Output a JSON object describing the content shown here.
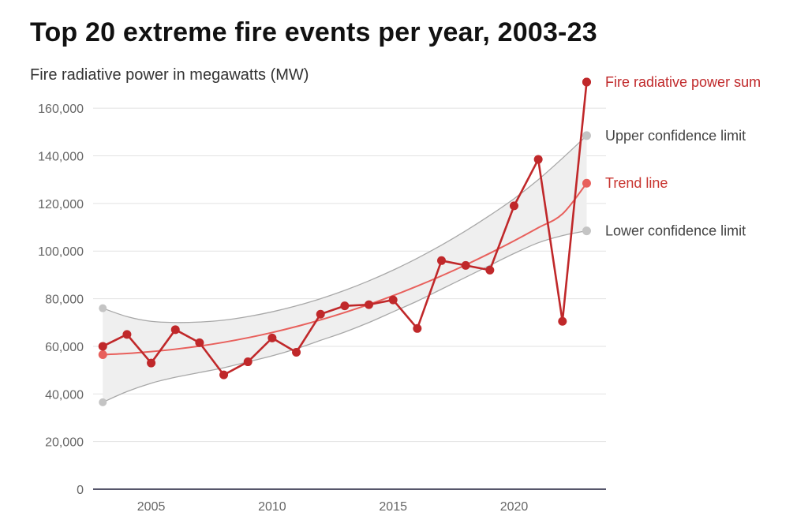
{
  "title": "Top 20 extreme fire events per year, 2003-23",
  "subtitle": "Fire radiative power in megawatts (MW)",
  "colors": {
    "sum": "#c0282a",
    "trend": "#e8605c",
    "confidence_line": "#a8a8a8",
    "confidence_marker": "#c4c4c4",
    "band": "#efefef",
    "grid": "#e2e2e2",
    "axis": "#1f1f3a",
    "sum_label": "#c0282a",
    "trend_label": "#c8342f",
    "confidence_label": "#444444"
  },
  "chart_data": {
    "type": "line",
    "title": "Top 20 extreme fire events per year, 2003-23",
    "ylabel": "Fire radiative power in megawatts (MW)",
    "xlabel": "",
    "xlim": [
      2002.6,
      2023.8
    ],
    "ylim": [
      0,
      170000
    ],
    "x_ticks": [
      2005,
      2010,
      2015,
      2020
    ],
    "y_ticks": [
      0,
      20000,
      40000,
      60000,
      80000,
      100000,
      120000,
      140000,
      160000
    ],
    "y_tick_labels": [
      "0",
      "20,000",
      "40,000",
      "60,000",
      "80,000",
      "100,000",
      "120,000",
      "140,000",
      "160,000"
    ],
    "x": [
      2003,
      2004,
      2005,
      2006,
      2007,
      2008,
      2009,
      2010,
      2011,
      2012,
      2013,
      2014,
      2015,
      2016,
      2017,
      2018,
      2019,
      2020,
      2021,
      2022,
      2023
    ],
    "series": [
      {
        "name": "Fire radiative power sum",
        "values": [
          60000,
          65000,
          53000,
          67000,
          61500,
          48000,
          53500,
          63500,
          57500,
          73500,
          77000,
          77500,
          79500,
          67500,
          96000,
          94000,
          92000,
          119000,
          138500,
          70500,
          171000
        ]
      },
      {
        "name": "Upper confidence limit",
        "values": [
          76000,
          72500,
          70500,
          70000,
          70200,
          71000,
          72500,
          74500,
          77000,
          80000,
          83500,
          87500,
          92000,
          97000,
          102500,
          108500,
          115000,
          122000,
          130000,
          139000,
          148500
        ]
      },
      {
        "name": "Trend line",
        "values": [
          56500,
          57000,
          57800,
          58800,
          60100,
          61700,
          63600,
          65800,
          68300,
          71100,
          74200,
          77600,
          81300,
          85300,
          89600,
          94200,
          99100,
          104300,
          109800,
          115600,
          128500
        ]
      },
      {
        "name": "Lower confidence limit",
        "values": [
          36500,
          41000,
          44500,
          47000,
          49000,
          51000,
          53500,
          56000,
          59000,
          62500,
          66000,
          70000,
          74500,
          79000,
          84000,
          89000,
          94000,
          99000,
          103500,
          106500,
          108500
        ]
      }
    ],
    "legend": [
      {
        "label": "Fire radiative power sum",
        "value": 171000,
        "kind": "sum"
      },
      {
        "label": "Upper confidence limit",
        "value": 148500,
        "kind": "upper"
      },
      {
        "label": "Trend line",
        "value": 128500,
        "kind": "trend"
      },
      {
        "label": "Lower confidence limit",
        "value": 108500,
        "kind": "lower"
      }
    ],
    "legend_placement": "right, at end of each series"
  }
}
